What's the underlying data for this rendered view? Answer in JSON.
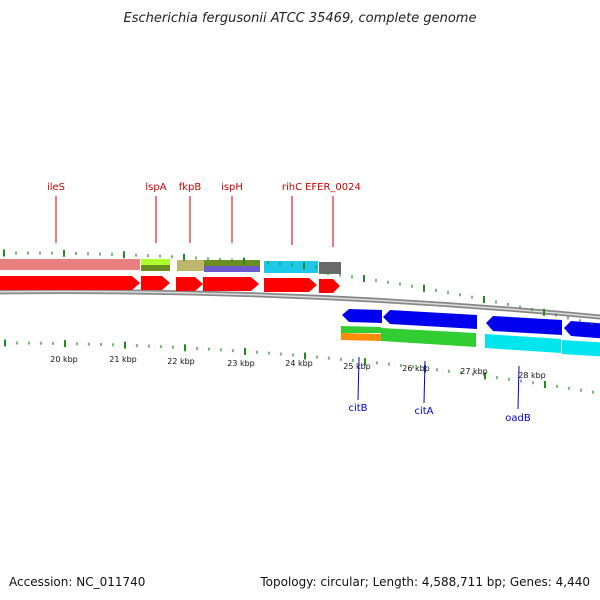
{
  "title": "Escherichia fergusonii ATCC 35469, complete genome",
  "footer": {
    "accession": "Accession: NC_011740",
    "summary": "Topology: circular; Length: 4,588,711 bp; Genes: 4,440"
  },
  "colors": {
    "forward_label": "#cc0000",
    "reverse_label": "#0000cc",
    "cds_forward": "#ff0000",
    "cds_reverse": "#0000ee",
    "backbone": "#888888",
    "tick": "#228b22"
  },
  "scale_labels": [
    "20 kbp",
    "21 kbp",
    "22 kbp",
    "23 kbp",
    "24 kbp",
    "25 kbp",
    "26 kbp",
    "27 kbp",
    "28 kbp"
  ],
  "forward_genes": [
    {
      "name": "ileS"
    },
    {
      "name": "lspA"
    },
    {
      "name": "fkpB"
    },
    {
      "name": "ispH"
    },
    {
      "name": "rihC"
    },
    {
      "name": "EFER_0024"
    }
  ],
  "reverse_genes": [
    {
      "name": "citB"
    },
    {
      "name": "citA"
    },
    {
      "name": "oadB"
    }
  ]
}
